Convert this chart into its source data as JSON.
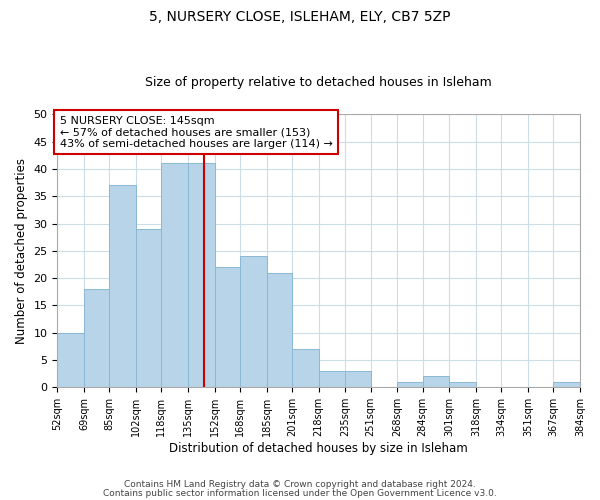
{
  "title1": "5, NURSERY CLOSE, ISLEHAM, ELY, CB7 5ZP",
  "title2": "Size of property relative to detached houses in Isleham",
  "xlabel": "Distribution of detached houses by size in Isleham",
  "ylabel": "Number of detached properties",
  "bin_edges": [
    52,
    69,
    85,
    102,
    118,
    135,
    152,
    168,
    185,
    201,
    218,
    235,
    251,
    268,
    284,
    301,
    318,
    334,
    351,
    367,
    384
  ],
  "counts": [
    10,
    18,
    37,
    29,
    41,
    41,
    22,
    24,
    21,
    7,
    3,
    3,
    0,
    1,
    2,
    1,
    0,
    0,
    0,
    1
  ],
  "bar_color": "#b8d4e8",
  "bar_edgecolor": "#8ab8d4",
  "vline_x": 145,
  "vline_color": "#cc0000",
  "annotation_lines": [
    "5 NURSERY CLOSE: 145sqm",
    "← 57% of detached houses are smaller (153)",
    "43% of semi-detached houses are larger (114) →"
  ],
  "ylim": [
    0,
    50
  ],
  "yticks": [
    0,
    5,
    10,
    15,
    20,
    25,
    30,
    35,
    40,
    45,
    50
  ],
  "tick_labels": [
    "52sqm",
    "69sqm",
    "85sqm",
    "102sqm",
    "118sqm",
    "135sqm",
    "152sqm",
    "168sqm",
    "185sqm",
    "201sqm",
    "218sqm",
    "235sqm",
    "251sqm",
    "268sqm",
    "284sqm",
    "301sqm",
    "318sqm",
    "334sqm",
    "351sqm",
    "367sqm",
    "384sqm"
  ],
  "footer1": "Contains HM Land Registry data © Crown copyright and database right 2024.",
  "footer2": "Contains public sector information licensed under the Open Government Licence v3.0.",
  "background_color": "#ffffff",
  "grid_color": "#ccdde8"
}
